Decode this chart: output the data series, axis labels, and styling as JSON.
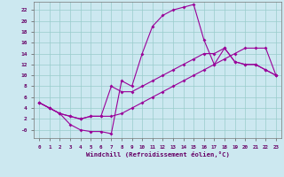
{
  "xlabel": "Windchill (Refroidissement éolien,°C)",
  "bg_color": "#cce8f0",
  "line_color": "#990099",
  "grid_color": "#99cccc",
  "xlim": [
    -0.5,
    23.5
  ],
  "ylim": [
    -1.5,
    23.5
  ],
  "xticks": [
    0,
    1,
    2,
    3,
    4,
    5,
    6,
    7,
    8,
    9,
    10,
    11,
    12,
    13,
    14,
    15,
    16,
    17,
    18,
    19,
    20,
    21,
    22,
    23
  ],
  "yticks": [
    0,
    2,
    4,
    6,
    8,
    10,
    12,
    14,
    16,
    18,
    20,
    22
  ],
  "ytick_labels": [
    "-0",
    "2",
    "4",
    "6",
    "8",
    "10",
    "12",
    "14",
    "16",
    "18",
    "20",
    "22"
  ],
  "line1_x": [
    0,
    1,
    2,
    3,
    4,
    5,
    6,
    7,
    8,
    9,
    10,
    11,
    12,
    13,
    14,
    15,
    16,
    17,
    18,
    19,
    20,
    21,
    22,
    23
  ],
  "line1_y": [
    5,
    4,
    3,
    1,
    0,
    -0.3,
    -0.3,
    -0.7,
    9,
    8,
    14,
    19,
    21,
    22,
    22.5,
    23,
    16.5,
    12,
    15,
    12.5,
    12,
    12,
    11,
    10
  ],
  "line2_x": [
    0,
    1,
    2,
    3,
    4,
    5,
    6,
    7,
    8,
    9,
    10,
    11,
    12,
    13,
    14,
    15,
    16,
    17,
    18,
    19,
    20,
    21,
    22,
    23
  ],
  "line2_y": [
    5,
    4,
    3,
    2.5,
    2,
    2.5,
    2.5,
    8,
    7,
    7,
    8,
    9,
    10,
    11,
    12,
    13,
    14,
    14,
    15,
    12.5,
    12,
    12,
    11,
    10
  ],
  "line3_x": [
    0,
    1,
    2,
    3,
    4,
    5,
    6,
    7,
    8,
    9,
    10,
    11,
    12,
    13,
    14,
    15,
    16,
    17,
    18,
    19,
    20,
    21,
    22,
    23
  ],
  "line3_y": [
    5,
    4,
    3,
    2.5,
    2,
    2.5,
    2.5,
    2.5,
    3,
    4,
    5,
    6,
    7,
    8,
    9,
    10,
    11,
    12,
    13,
    14,
    15,
    15,
    15,
    10
  ]
}
